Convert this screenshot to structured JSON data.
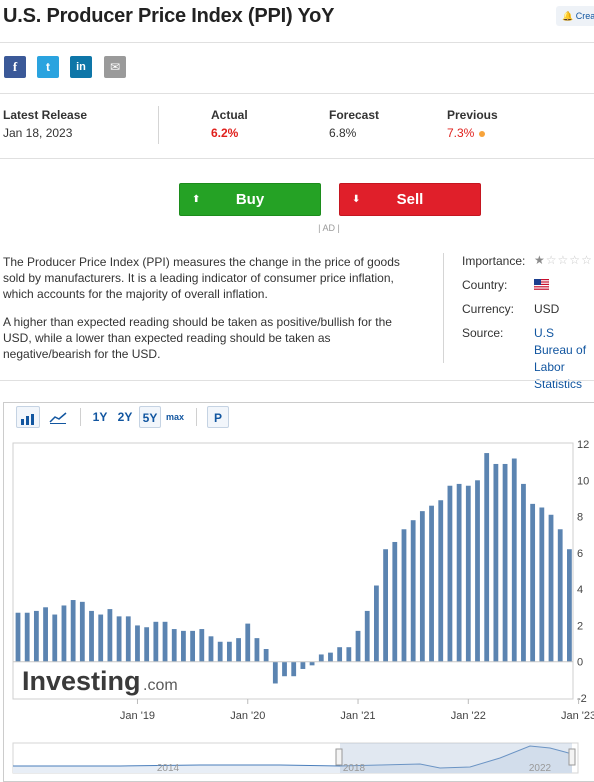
{
  "header": {
    "title": "U.S. Producer Price Index (PPI) YoY",
    "alert_label": "Create Alert"
  },
  "share": {
    "facebook_glyph": "f",
    "twitter_glyph": "t",
    "linkedin_glyph": "in",
    "email_glyph": "✉",
    "icons": [
      "facebook-icon",
      "twitter-icon",
      "linkedin-icon",
      "email-icon"
    ]
  },
  "release": {
    "latest_label": "Latest Release",
    "latest_value": "Jan 18, 2023",
    "actual_label": "Actual",
    "actual_value": "6.2%",
    "forecast_label": "Forecast",
    "forecast_value": "6.8%",
    "previous_label": "Previous",
    "previous_value": "7.3%"
  },
  "trade": {
    "buy_label": "Buy",
    "sell_label": "Sell",
    "ad_label": "| AD |",
    "buy_glyph": "⬆",
    "sell_glyph": "⬇"
  },
  "description": {
    "p1": "The Producer Price Index (PPI) measures the change in the price of goods sold by manufacturers. It is a leading indicator of consumer price inflation, which accounts for the majority of overall inflation.",
    "p2": "A higher than expected reading should be taken as positive/bullish for the USD, while a lower than expected reading should be taken as negative/bearish for the USD."
  },
  "info": {
    "importance_label": "Importance:",
    "importance_stars": 1,
    "importance_max": 5,
    "country_label": "Country:",
    "currency_label": "Currency:",
    "currency_value": "USD",
    "source_label": "Source:",
    "source_value": "U.S Bureau of Labor Statistics"
  },
  "toolbar": {
    "ranges": [
      "1Y",
      "2Y",
      "5Y",
      "max"
    ],
    "selected_range": "5Y",
    "p_label": "P",
    "icons": [
      "bar-chart-icon",
      "line-chart-icon"
    ]
  },
  "watermark": {
    "brand": "Investing",
    "suffix": ".com"
  },
  "chart_data": {
    "type": "bar",
    "x": [
      "2017-12",
      "2018-01",
      "2018-02",
      "2018-03",
      "2018-04",
      "2018-05",
      "2018-06",
      "2018-07",
      "2018-08",
      "2018-09",
      "2018-10",
      "2018-11",
      "2018-12",
      "2019-01",
      "2019-02",
      "2019-03",
      "2019-04",
      "2019-05",
      "2019-06",
      "2019-07",
      "2019-08",
      "2019-09",
      "2019-10",
      "2019-11",
      "2019-12",
      "2020-01",
      "2020-02",
      "2020-03",
      "2020-04",
      "2020-05",
      "2020-06",
      "2020-07",
      "2020-08",
      "2020-09",
      "2020-10",
      "2020-11",
      "2020-12",
      "2021-01",
      "2021-02",
      "2021-03",
      "2021-04",
      "2021-05",
      "2021-06",
      "2021-07",
      "2021-08",
      "2021-09",
      "2021-10",
      "2021-11",
      "2021-12",
      "2022-01",
      "2022-02",
      "2022-03",
      "2022-04",
      "2022-05",
      "2022-06",
      "2022-07",
      "2022-08",
      "2022-09",
      "2022-10",
      "2022-11",
      "2022-12"
    ],
    "values": [
      2.7,
      2.7,
      2.8,
      3.0,
      2.6,
      3.1,
      3.4,
      3.3,
      2.8,
      2.6,
      2.9,
      2.5,
      2.5,
      2.0,
      1.9,
      2.2,
      2.2,
      1.8,
      1.7,
      1.7,
      1.8,
      1.4,
      1.1,
      1.1,
      1.3,
      2.1,
      1.3,
      0.7,
      -1.2,
      -0.8,
      -0.8,
      -0.4,
      -0.2,
      0.4,
      0.5,
      0.8,
      0.8,
      1.7,
      2.8,
      4.2,
      6.2,
      6.6,
      7.3,
      7.8,
      8.3,
      8.6,
      8.9,
      9.7,
      9.8,
      9.7,
      10.0,
      11.5,
      10.9,
      10.9,
      11.2,
      9.8,
      8.7,
      8.5,
      8.1,
      7.3,
      6.2
    ],
    "x_tick_labels": [
      "Jan '19",
      "Jan '20",
      "Jan '21",
      "Jan '22",
      "Jan '23"
    ],
    "x_tick_dates": [
      "2019-01",
      "2020-01",
      "2021-01",
      "2022-01",
      "2023-01"
    ],
    "y_ticks": [
      -2,
      0,
      2,
      4,
      6,
      8,
      10,
      12
    ],
    "ylim": [
      -2,
      12
    ],
    "grid": false,
    "navigator_labels": [
      "2014",
      "2018",
      "2022"
    ]
  }
}
